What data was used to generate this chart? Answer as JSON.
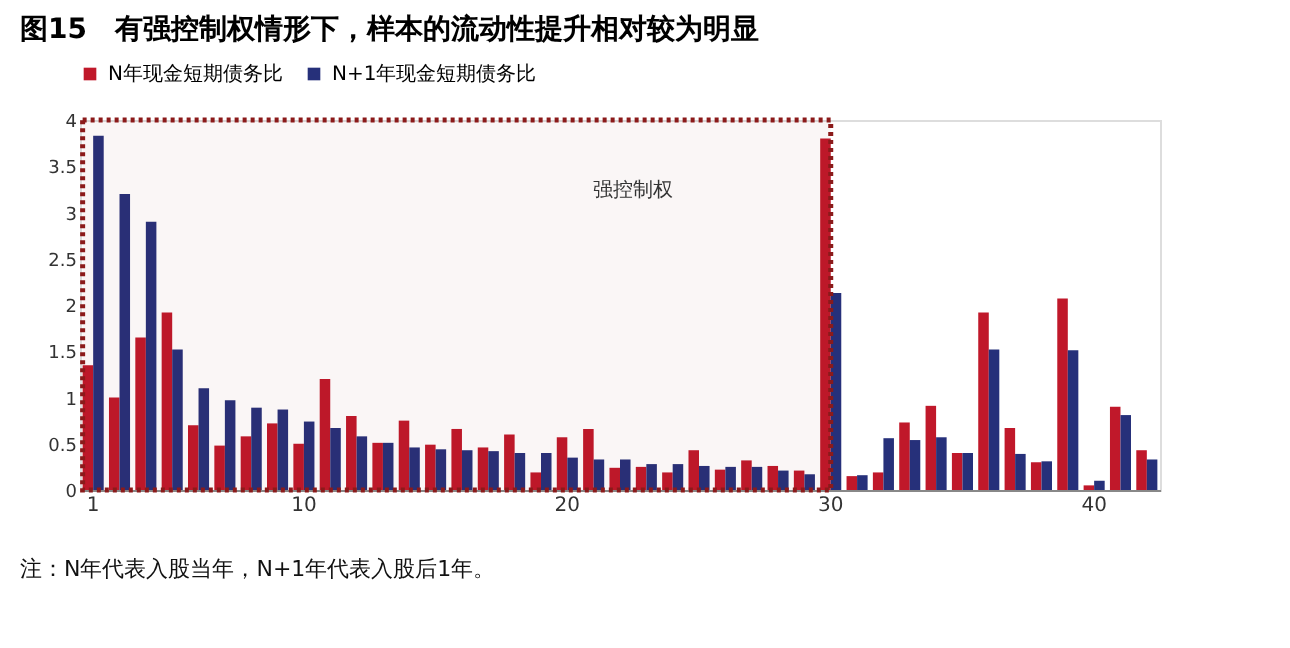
{
  "chart_data": {
    "type": "bar",
    "title": "图15　有强控制权情形下，样本的流动性提升相对较为明显",
    "categories": [
      "1",
      null,
      null,
      null,
      null,
      null,
      null,
      null,
      "10",
      null,
      null,
      null,
      null,
      null,
      null,
      null,
      null,
      null,
      "20",
      null,
      null,
      null,
      null,
      null,
      null,
      null,
      null,
      null,
      "30",
      null,
      null,
      null,
      null,
      null,
      null,
      null,
      null,
      null,
      "40",
      null,
      null
    ],
    "series": [
      {
        "name": "N年现金短期债务比",
        "color": "#c0182a",
        "values": [
          1.35,
          1.0,
          1.65,
          1.92,
          0.7,
          0.48,
          0.58,
          0.72,
          0.5,
          1.2,
          0.8,
          0.51,
          0.75,
          0.49,
          0.66,
          0.46,
          0.6,
          0.19,
          0.57,
          0.66,
          0.24,
          0.25,
          0.19,
          0.43,
          0.22,
          0.32,
          0.26,
          0.21,
          3.8,
          0.15,
          0.19,
          0.73,
          0.91,
          0.4,
          1.92,
          0.67,
          0.3,
          2.07,
          0.05,
          0.9,
          0.43
        ]
      },
      {
        "name": "N+1年现金短期债务比",
        "color": "#26307a",
        "values": [
          3.83,
          3.2,
          2.9,
          1.52,
          1.1,
          0.97,
          0.89,
          0.87,
          0.74,
          0.67,
          0.58,
          0.51,
          0.46,
          0.44,
          0.43,
          0.42,
          0.4,
          0.4,
          0.35,
          0.33,
          0.33,
          0.28,
          0.28,
          0.26,
          0.25,
          0.25,
          0.21,
          0.17,
          2.13,
          0.16,
          0.56,
          0.54,
          0.57,
          0.4,
          1.52,
          0.39,
          0.31,
          1.51,
          0.1,
          0.81,
          0.33
        ]
      }
    ],
    "ylim": [
      0,
      4
    ],
    "yticks": [
      0,
      0.5,
      1,
      1.5,
      2,
      2.5,
      3,
      3.5,
      4
    ],
    "grid": false,
    "legend": "top",
    "bands": [
      {
        "axis": "x",
        "from": "1",
        "to": "30",
        "label": "强控制权",
        "color": "#8b1a1a"
      }
    ],
    "annotations": [
      "注：N年代表入股当年，N+1年代表入股后1年。"
    ]
  }
}
